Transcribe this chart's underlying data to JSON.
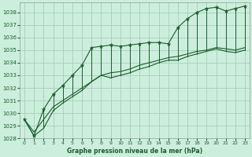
{
  "title": "Graphe pression niveau de la mer (hPa)",
  "bg_color": "#cceedd",
  "grid_color": "#aaccbb",
  "line_color": "#1a5c2a",
  "marker_color": "#1a5c2a",
  "xlim": [
    -0.5,
    23.5
  ],
  "ylim": [
    1028,
    1038.8
  ],
  "yticks": [
    1028,
    1029,
    1030,
    1031,
    1032,
    1033,
    1034,
    1035,
    1036,
    1037,
    1038
  ],
  "xticks": [
    0,
    1,
    2,
    3,
    4,
    5,
    6,
    7,
    8,
    9,
    10,
    11,
    12,
    13,
    14,
    15,
    16,
    17,
    18,
    19,
    20,
    21,
    22,
    23
  ],
  "hours": [
    0,
    1,
    2,
    3,
    4,
    5,
    6,
    7,
    8,
    9,
    10,
    11,
    12,
    13,
    14,
    15,
    16,
    17,
    18,
    19,
    20,
    21,
    22,
    23
  ],
  "baseline": [
    1029.5,
    1028.2,
    1028.8,
    1030.2,
    1030.8,
    1031.3,
    1031.8,
    1032.5,
    1033.0,
    1032.8,
    1033.0,
    1033.2,
    1033.5,
    1033.7,
    1034.0,
    1034.2,
    1034.2,
    1034.5,
    1034.7,
    1034.9,
    1035.1,
    1034.9,
    1034.8,
    1035.0
  ],
  "peaks": [
    1029.5,
    1028.2,
    1030.3,
    1031.5,
    1032.2,
    1033.0,
    1033.8,
    1035.2,
    1035.3,
    1035.4,
    1035.3,
    1035.4,
    1035.5,
    1035.6,
    1035.6,
    1035.5,
    1036.8,
    1037.5,
    1038.0,
    1038.3,
    1038.4,
    1038.1,
    1038.3,
    1038.5
  ],
  "trend": [
    1029.5,
    1028.5,
    1029.5,
    1030.5,
    1031.0,
    1031.5,
    1032.0,
    1032.5,
    1033.0,
    1033.2,
    1033.3,
    1033.5,
    1033.8,
    1034.0,
    1034.2,
    1034.4,
    1034.5,
    1034.7,
    1034.9,
    1035.0,
    1035.2,
    1035.1,
    1035.0,
    1035.2
  ]
}
